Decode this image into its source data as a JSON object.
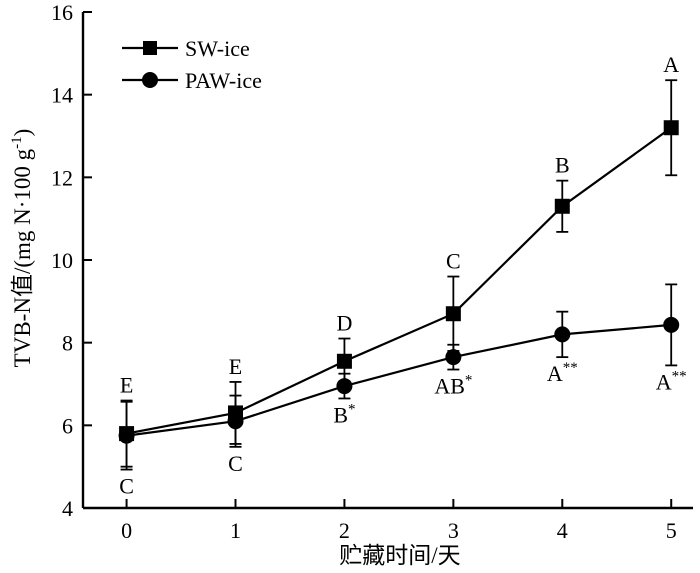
{
  "chart_data": {
    "type": "line",
    "title": "",
    "xlabel": "贮藏时间/天",
    "ylabel": "TVB-N值/(mg N·100 g⁻¹)",
    "ylabel_main": "TVB-N值/(mg N·100 g",
    "ylabel_sup": "-1",
    "ylabel_end": ")",
    "x": [
      0,
      1,
      2,
      3,
      4,
      5
    ],
    "x_tick_labels": [
      "0",
      "1",
      "2",
      "3",
      "4",
      "5"
    ],
    "y_ticks": [
      4,
      6,
      8,
      10,
      12,
      14,
      16
    ],
    "y_tick_labels": [
      "4",
      "6",
      "8",
      "10",
      "12",
      "14",
      "16"
    ],
    "xlim": [
      -0.4,
      5.2
    ],
    "ylim": [
      4,
      16
    ],
    "legend_position": "top-left",
    "series": [
      {
        "name": "SW-ice",
        "marker": "square",
        "values": [
          5.8,
          6.3,
          7.55,
          8.7,
          11.3,
          13.2
        ],
        "errors": [
          0.8,
          0.75,
          0.55,
          0.9,
          0.62,
          1.15
        ],
        "labels": [
          "E",
          "E",
          "D",
          "C",
          "B",
          "A"
        ],
        "label_sups": [
          "",
          "",
          "",
          "",
          "",
          ""
        ]
      },
      {
        "name": "PAW-ice",
        "marker": "circle",
        "values": [
          5.75,
          6.1,
          6.95,
          7.65,
          8.2,
          8.43
        ],
        "errors": [
          0.82,
          0.62,
          0.3,
          0.3,
          0.55,
          0.98
        ],
        "labels": [
          "C",
          "C",
          "B",
          "AB",
          "A",
          "A"
        ],
        "label_sups": [
          "",
          "",
          "*",
          "*",
          "**",
          "**"
        ]
      }
    ]
  }
}
